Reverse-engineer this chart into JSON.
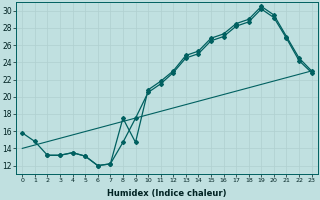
{
  "xlabel": "Humidex (Indice chaleur)",
  "bg_color": "#c0e0e0",
  "grid_color": "#b0d0d0",
  "line_color": "#006060",
  "xlim": [
    -0.5,
    23.5
  ],
  "ylim": [
    11,
    31
  ],
  "xticks": [
    0,
    1,
    2,
    3,
    4,
    5,
    6,
    7,
    8,
    9,
    10,
    11,
    12,
    13,
    14,
    15,
    16,
    17,
    18,
    19,
    20,
    21,
    22,
    23
  ],
  "yticks": [
    12,
    14,
    16,
    18,
    20,
    22,
    24,
    26,
    28,
    30
  ],
  "line1_x": [
    0,
    1,
    2,
    3,
    4,
    5,
    6,
    7,
    8,
    9,
    10,
    11,
    12,
    13,
    14,
    15,
    16,
    17,
    18,
    19,
    20,
    21,
    22,
    23
  ],
  "line1_y": [
    15.8,
    14.8,
    13.2,
    13.2,
    13.5,
    13.1,
    12.0,
    12.2,
    17.5,
    14.7,
    20.8,
    21.8,
    23.0,
    24.8,
    25.3,
    26.8,
    27.3,
    28.5,
    29.0,
    30.5,
    29.5,
    27.0,
    24.5,
    23.0
  ],
  "line2_x": [
    2,
    3,
    4,
    5,
    6,
    7,
    8,
    9,
    10,
    11,
    12,
    13,
    14,
    15,
    16,
    17,
    18,
    19,
    20,
    21,
    22,
    23
  ],
  "line2_y": [
    13.2,
    13.2,
    13.5,
    13.1,
    12.0,
    12.2,
    14.7,
    17.5,
    20.5,
    21.5,
    22.8,
    24.5,
    25.0,
    26.5,
    27.0,
    28.2,
    28.7,
    30.2,
    29.2,
    26.8,
    24.2,
    22.8
  ],
  "line3_x": [
    0,
    23
  ],
  "line3_y": [
    14.0,
    23.0
  ]
}
